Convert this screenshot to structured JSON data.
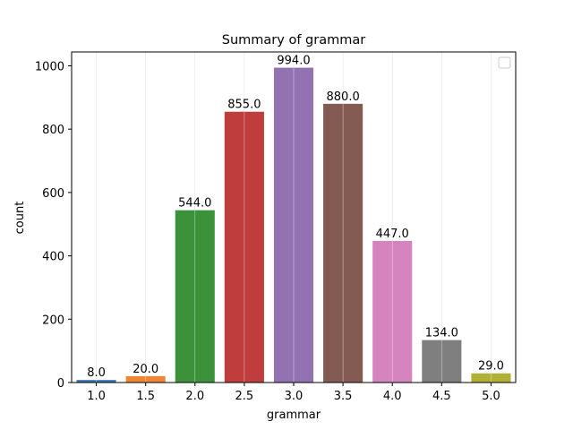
{
  "chart_data": {
    "type": "bar",
    "title": "Summary of grammar",
    "xlabel": "grammar",
    "ylabel": "count",
    "categories": [
      "1.0",
      "1.5",
      "2.0",
      "2.5",
      "3.0",
      "3.5",
      "4.0",
      "4.5",
      "5.0"
    ],
    "values": [
      8.0,
      20.0,
      544.0,
      855.0,
      994.0,
      880.0,
      447.0,
      134.0,
      29.0
    ],
    "data_labels": [
      "8.0",
      "20.0",
      "544.0",
      "855.0",
      "994.0",
      "880.0",
      "447.0",
      "134.0",
      "29.0"
    ],
    "colors": [
      "#3a75af",
      "#ef8636",
      "#3b923b",
      "#c03d3e",
      "#9372b2",
      "#845b53",
      "#d684bd",
      "#7f7f7f",
      "#afb035"
    ],
    "ylim": [
      0,
      1043.7
    ],
    "yticks": [
      0,
      200,
      400,
      600,
      800,
      1000
    ],
    "ytick_labels": [
      "0",
      "200",
      "400",
      "600",
      "800",
      "1000"
    ],
    "grid": "vertical",
    "legend": "top-right (empty)"
  }
}
